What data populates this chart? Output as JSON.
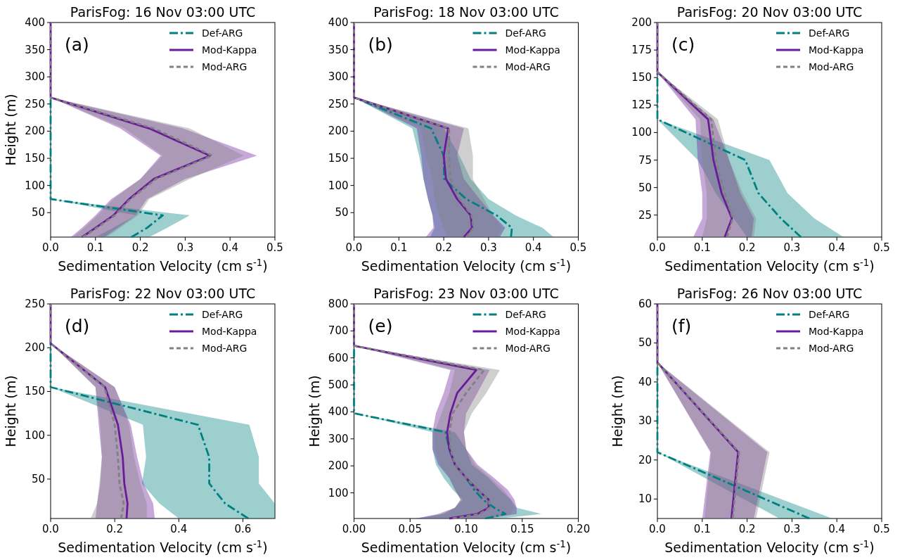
{
  "chart_data": [
    {
      "type": "line",
      "orientation": "horizontal",
      "title": "ParisFog: 16 Nov 03:00 UTC",
      "xlabel": "Sedimentation Velocity (cm s$^{-1}$)",
      "ylabel": "Height (m)",
      "annotations": [
        "(a)"
      ],
      "legend": "top right",
      "xlim": [
        0,
        0.5
      ],
      "xticks": [
        {
          "value": 0,
          "label": "0.0"
        },
        0.1,
        0.2,
        0.3,
        0.4,
        0.5
      ],
      "ylim": [
        5,
        400
      ],
      "yticks": [
        50,
        100,
        150,
        200,
        250,
        300,
        350,
        400
      ],
      "series": [
        {
          "name": "Def-ARG",
          "color": "#008080",
          "line_style": "dashdot",
          "x": [
            5,
            22,
            45,
            75,
            112,
            155,
            205,
            262
          ],
          "values": [
            0.18,
            0.215,
            0.25,
            0,
            0,
            0,
            0,
            0
          ],
          "lower": [
            0.1,
            0.14,
            0.19,
            0,
            0,
            0,
            0,
            0
          ],
          "upper": [
            0.22,
            0.26,
            0.31,
            0,
            0,
            0,
            0,
            0
          ]
        },
        {
          "name": "Mod-Kappa",
          "color": "#6a1b9a",
          "line_style": "solid",
          "x": [
            5,
            22,
            45,
            75,
            112,
            155,
            205,
            262,
            325,
            400
          ],
          "values": [
            0.07,
            0.1,
            0.14,
            0.175,
            0.23,
            0.355,
            0.22,
            0,
            0,
            0
          ],
          "lower": [
            0.045,
            0.07,
            0.1,
            0.135,
            0.2,
            0.245,
            0.155,
            0,
            0,
            0
          ],
          "upper": [
            0.12,
            0.15,
            0.19,
            0.215,
            0.3,
            0.46,
            0.295,
            0,
            0,
            0
          ]
        },
        {
          "name": "Mod-ARG",
          "color": "#808080",
          "line_style": "dashed",
          "x": [
            5,
            22,
            45,
            75,
            112,
            155,
            205,
            262,
            325,
            400
          ],
          "values": [
            0.072,
            0.103,
            0.143,
            0.178,
            0.235,
            0.36,
            0.23,
            0,
            0,
            0
          ],
          "lower": [
            0.05,
            0.075,
            0.105,
            0.14,
            0.2,
            0.25,
            0.165,
            0,
            0,
            0
          ],
          "upper": [
            0.125,
            0.155,
            0.195,
            0.22,
            0.31,
            0.43,
            0.31,
            0,
            0,
            0
          ]
        }
      ]
    },
    {
      "type": "line",
      "orientation": "horizontal",
      "title": "ParisFog: 18 Nov 03:00 UTC",
      "xlabel": "Sedimentation Velocity (cm s$^{-1}$)",
      "annotations": [
        "(b)"
      ],
      "legend": "top right",
      "xlim": [
        0,
        0.5
      ],
      "xticks": [
        {
          "value": 0,
          "label": "0.0"
        },
        0.1,
        0.2,
        0.3,
        0.4,
        0.5
      ],
      "ylim": [
        5,
        400
      ],
      "yticks": [
        50,
        100,
        150,
        200,
        250,
        300,
        350,
        400
      ],
      "series": [
        {
          "name": "Def-ARG",
          "color": "#008080",
          "line_style": "dashdot",
          "x": [
            5,
            22,
            45,
            75,
            112,
            155,
            205,
            262
          ],
          "values": [
            0.35,
            0.352,
            0.318,
            0.25,
            0.201,
            0.2,
            0.172,
            0
          ],
          "lower": [
            0.17,
            0.18,
            0.175,
            0.165,
            0.155,
            0.145,
            0.13,
            0
          ],
          "upper": [
            0.445,
            0.42,
            0.36,
            0.3,
            0.26,
            0.235,
            0.2,
            0
          ]
        },
        {
          "name": "Mod-Kappa",
          "color": "#6a1b9a",
          "line_style": "solid",
          "x": [
            5,
            22,
            45,
            75,
            112,
            155,
            205,
            262,
            325,
            400
          ],
          "values": [
            0.245,
            0.263,
            0.26,
            0.23,
            0.205,
            0.2,
            0.21,
            0,
            0,
            0
          ],
          "lower": [
            0.16,
            0.177,
            0.175,
            0.165,
            0.155,
            0.15,
            0.14,
            0,
            0,
            0
          ],
          "upper": [
            0.325,
            0.337,
            0.31,
            0.28,
            0.245,
            0.23,
            0.245,
            0,
            0,
            0
          ]
        },
        {
          "name": "Mod-ARG",
          "color": "#808080",
          "line_style": "dashed",
          "x": [
            5,
            22,
            45,
            75,
            112,
            155,
            205,
            262,
            325,
            400
          ],
          "values": [
            0.25,
            0.266,
            0.262,
            0.235,
            0.215,
            0.212,
            0.212,
            0,
            0,
            0
          ],
          "lower": [
            0.21,
            0.2,
            0.19,
            0.18,
            0.175,
            0.16,
            0.15,
            0,
            0,
            0
          ],
          "upper": [
            0.32,
            0.33,
            0.31,
            0.29,
            0.265,
            0.265,
            0.255,
            0,
            0,
            0
          ]
        }
      ]
    },
    {
      "type": "line",
      "orientation": "horizontal",
      "title": "ParisFog: 20 Nov 03:00 UTC",
      "xlabel": "Sedimentation Velocity (cm s$^{-1}$)",
      "annotations": [
        "(c)"
      ],
      "legend": "top right",
      "xlim": [
        0,
        0.5
      ],
      "xticks": [
        {
          "value": 0,
          "label": "0.0"
        },
        0.1,
        0.2,
        0.3,
        0.4,
        0.5
      ],
      "ylim": [
        5,
        200
      ],
      "yticks": [
        25,
        50,
        75,
        100,
        125,
        150,
        175,
        200
      ],
      "series": [
        {
          "name": "Def-ARG",
          "color": "#008080",
          "line_style": "dashdot",
          "x": [
            5,
            22,
            45,
            75,
            112,
            155
          ],
          "values": [
            0.32,
            0.275,
            0.225,
            0.196,
            0,
            0
          ],
          "lower": [
            0.2,
            0.17,
            0.13,
            0.09,
            0,
            0
          ],
          "upper": [
            0.415,
            0.35,
            0.29,
            0.25,
            0,
            0
          ]
        },
        {
          "name": "Mod-Kappa",
          "color": "#6a1b9a",
          "line_style": "solid",
          "x": [
            5,
            22,
            45,
            75,
            112,
            155,
            200
          ],
          "values": [
            0.15,
            0.166,
            0.143,
            0.125,
            0.113,
            0,
            0
          ],
          "lower": [
            0.08,
            0.1,
            0.1,
            0.09,
            0.085,
            0,
            0
          ],
          "upper": [
            0.21,
            0.215,
            0.185,
            0.16,
            0.125,
            0,
            0
          ]
        },
        {
          "name": "Mod-ARG",
          "color": "#808080",
          "line_style": "dashed",
          "x": [
            5,
            22,
            45,
            75,
            112,
            155,
            200
          ],
          "values": [
            0.155,
            0.168,
            0.15,
            0.13,
            0.12,
            0,
            0
          ],
          "lower": [
            0.1,
            0.11,
            0.11,
            0.1,
            0.095,
            0,
            0
          ],
          "upper": [
            0.215,
            0.22,
            0.19,
            0.16,
            0.135,
            0,
            0
          ]
        }
      ]
    },
    {
      "type": "line",
      "orientation": "horizontal",
      "title": "ParisFog: 22 Nov 03:00 UTC",
      "xlabel": "Sedimentation Velocity (cm s$^{-1}$)",
      "ylabel": "Height (m)",
      "annotations": [
        "(d)"
      ],
      "legend": "top right",
      "xlim": [
        0,
        0.7
      ],
      "xticks": [
        {
          "value": 0,
          "label": "0.0"
        },
        0.2,
        0.4,
        0.6
      ],
      "ylim": [
        5,
        250
      ],
      "yticks": [
        50,
        100,
        150,
        200,
        250
      ],
      "series": [
        {
          "name": "Def-ARG",
          "color": "#008080",
          "line_style": "dashdot",
          "x": [
            5,
            22,
            45,
            75,
            112,
            155,
            205
          ],
          "values": [
            0.617,
            0.545,
            0.495,
            0.495,
            0.46,
            0,
            0
          ],
          "lower": [
            0.4,
            0.34,
            0.285,
            0.298,
            0.288,
            0,
            0
          ],
          "upper": [
            0.7,
            0.7,
            0.65,
            0.65,
            0.62,
            0,
            0
          ]
        },
        {
          "name": "Mod-Kappa",
          "color": "#6a1b9a",
          "line_style": "solid",
          "x": [
            5,
            22,
            45,
            75,
            112,
            155,
            205,
            250
          ],
          "values": [
            0.237,
            0.24,
            0.23,
            0.225,
            0.21,
            0.17,
            0,
            0
          ],
          "lower": [
            0.14,
            0.145,
            0.155,
            0.16,
            0.15,
            0.14,
            0,
            0
          ],
          "upper": [
            0.325,
            0.32,
            0.29,
            0.27,
            0.25,
            0.2,
            0,
            0
          ]
        },
        {
          "name": "Mod-ARG",
          "color": "#808080",
          "line_style": "dashed",
          "x": [
            5,
            22,
            45,
            75,
            112,
            155,
            205,
            250
          ],
          "values": [
            0.22,
            0.228,
            0.215,
            0.21,
            0.2,
            0.168,
            0,
            0
          ],
          "lower": [
            0.125,
            0.145,
            0.152,
            0.16,
            0.155,
            0.14,
            0,
            0
          ],
          "upper": [
            0.3,
            0.3,
            0.28,
            0.26,
            0.245,
            0.2,
            0,
            0
          ]
        }
      ]
    },
    {
      "type": "line",
      "orientation": "horizontal",
      "title": "ParisFog: 23 Nov 03:00 UTC",
      "xlabel": "Sedimentation Velocity (cm s$^{-1}$)",
      "ylabel": "Height (m)",
      "annotations": [
        "(e)"
      ],
      "legend": "top right",
      "xlim": [
        0,
        0.2
      ],
      "xticks": [
        {
          "value": 0,
          "label": "0.00"
        },
        0.05,
        {
          "value": 0.1,
          "label": "0.10"
        },
        0.15,
        {
          "value": 0.2,
          "label": "0.20"
        }
      ],
      "ylim": [
        5,
        800
      ],
      "yticks": [
        100,
        200,
        300,
        400,
        500,
        600,
        700,
        800
      ],
      "series": [
        {
          "name": "Def-ARG",
          "color": "#008080",
          "line_style": "dashdot",
          "x": [
            5,
            22,
            45,
            75,
            112,
            155,
            205,
            262,
            325,
            395,
            470,
            555,
            645
          ],
          "values": [
            0.117,
            0.135,
            0.125,
            0.115,
            0.107,
            0.1,
            0.09,
            0.085,
            0.0816,
            0,
            0,
            0,
            0
          ],
          "lower": [
            0.055,
            0.08,
            0.09,
            0.097,
            0.088,
            0.08,
            0.073,
            0.07,
            0.07,
            0,
            0,
            0,
            0
          ],
          "upper": [
            0.13,
            0.167,
            0.145,
            0.14,
            0.13,
            0.12,
            0.105,
            0.1,
            0.09,
            0,
            0,
            0,
            0
          ]
        },
        {
          "name": "Mod-Kappa",
          "color": "#6a1b9a",
          "line_style": "solid",
          "x": [
            5,
            22,
            45,
            75,
            112,
            155,
            205,
            262,
            325,
            395,
            470,
            555,
            645,
            740,
            800
          ],
          "values": [
            0.085,
            0.11,
            0.12,
            0.12,
            0.11,
            0.1,
            0.09,
            0.085,
            0.083,
            0.086,
            0.092,
            0.109,
            0,
            0,
            0
          ],
          "lower": [
            0.055,
            0.075,
            0.09,
            0.095,
            0.09,
            0.085,
            0.075,
            0.07,
            0.07,
            0.073,
            0.08,
            0.086,
            0,
            0,
            0
          ],
          "upper": [
            0.12,
            0.145,
            0.145,
            0.143,
            0.137,
            0.125,
            0.11,
            0.1,
            0.098,
            0.1,
            0.11,
            0.121,
            0,
            0,
            0
          ]
        },
        {
          "name": "Mod-ARG",
          "color": "#808080",
          "line_style": "dashed",
          "x": [
            5,
            22,
            45,
            75,
            112,
            155,
            205,
            262,
            325,
            395,
            470,
            555,
            645,
            740,
            800
          ],
          "values": [
            0.088,
            0.112,
            0.121,
            0.12,
            0.11,
            0.1,
            0.09,
            0.086,
            0.085,
            0.088,
            0.1,
            0.116,
            0,
            0,
            0
          ],
          "lower": [
            0.06,
            0.078,
            0.09,
            0.095,
            0.09,
            0.085,
            0.077,
            0.072,
            0.072,
            0.078,
            0.085,
            0.09,
            0,
            0,
            0
          ],
          "upper": [
            0.12,
            0.14,
            0.142,
            0.14,
            0.133,
            0.122,
            0.108,
            0.1,
            0.098,
            0.105,
            0.118,
            0.13,
            0,
            0,
            0
          ]
        }
      ]
    },
    {
      "type": "line",
      "orientation": "horizontal",
      "title": "ParisFog: 26 Nov 03:00 UTC",
      "xlabel": "Sedimentation Velocity (cm s$^{-1}$)",
      "ylabel": "Height (m)",
      "annotations": [
        "(f)"
      ],
      "legend": "top right",
      "xlim": [
        0,
        0.5
      ],
      "xticks": [
        {
          "value": 0,
          "label": "0.0"
        },
        0.1,
        0.2,
        0.3,
        0.4,
        0.5
      ],
      "ylim": [
        5,
        60
      ],
      "yticks": [
        10,
        20,
        30,
        40,
        50,
        60
      ],
      "series": [
        {
          "name": "Def-ARG",
          "color": "#008080",
          "line_style": "dashdot",
          "x": [
            5,
            22,
            45
          ],
          "values": [
            0.339,
            0,
            0
          ],
          "lower": [
            0.272,
            0,
            0
          ],
          "upper": [
            0.39,
            0,
            0
          ]
        },
        {
          "name": "Mod-Kappa",
          "color": "#6a1b9a",
          "line_style": "solid",
          "x": [
            5,
            22,
            45,
            60
          ],
          "values": [
            0.165,
            0.18,
            0,
            0
          ],
          "lower": [
            0.1,
            0.118,
            0,
            0
          ],
          "upper": [
            0.215,
            0.245,
            0,
            0
          ]
        },
        {
          "name": "Mod-ARG",
          "color": "#808080",
          "line_style": "dashed",
          "x": [
            5,
            22,
            45,
            60
          ],
          "values": [
            0.168,
            0.182,
            0,
            0
          ],
          "lower": [
            0.105,
            0.12,
            0,
            0
          ],
          "upper": [
            0.22,
            0.25,
            0,
            0
          ]
        }
      ]
    }
  ]
}
